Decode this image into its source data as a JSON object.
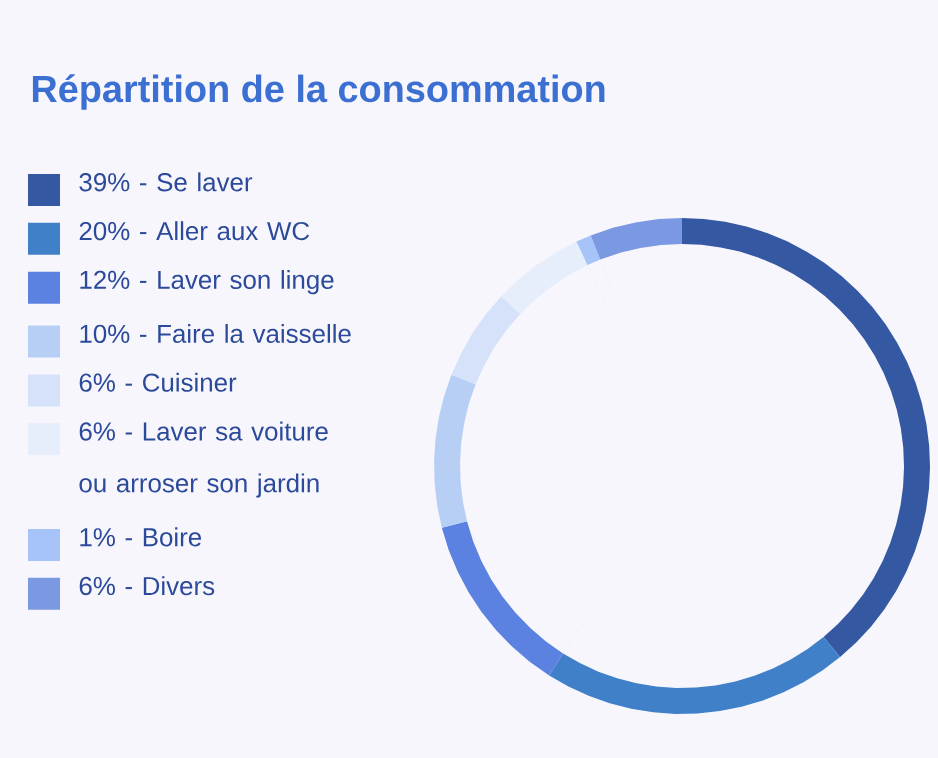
{
  "chart_data": {
    "type": "donut",
    "title": "Répartition de la consommation",
    "categories": [
      "39% - Se laver",
      "20% - Aller aux WC",
      "12% - Laver son linge",
      "10% - Faire la vaisselle",
      "6% - Cuisiner",
      "6% - Laver sa voiture ou arroser son jardin",
      "1% - Boire",
      "6% - Divers"
    ],
    "values": [
      39,
      20,
      12,
      10,
      6,
      6,
      1,
      6
    ],
    "colors": [
      "#3558a2",
      "#3f80c8",
      "#5b82e0",
      "#b8cff5",
      "#d5e2fa",
      "#e6edfb",
      "#a7c4f9",
      "#7b98e3"
    ],
    "legend": "left"
  }
}
